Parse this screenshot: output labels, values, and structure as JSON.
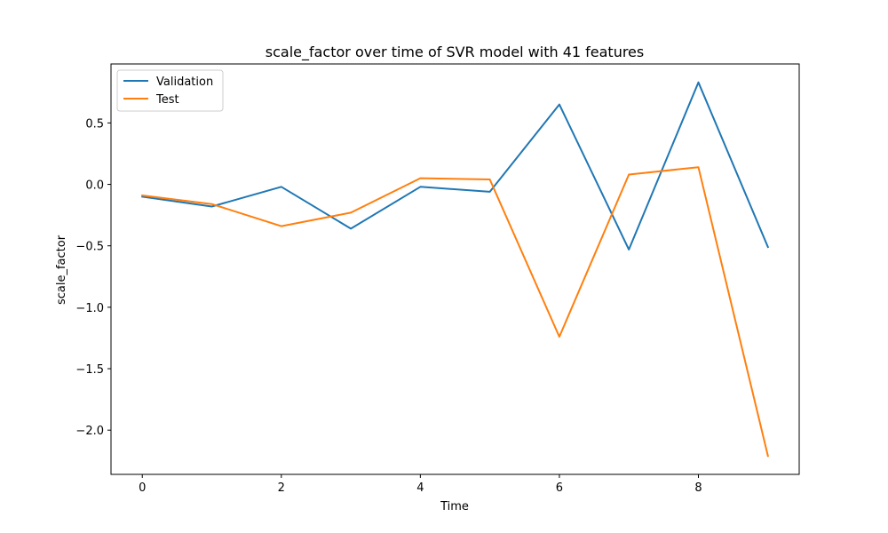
{
  "chart_data": {
    "type": "line",
    "title": "scale_factor over time of SVR model with 41 features",
    "xlabel": "Time",
    "ylabel": "scale_factor",
    "x": [
      0,
      1,
      2,
      3,
      4,
      5,
      6,
      7,
      8,
      9
    ],
    "xlim": [
      -0.45,
      9.45
    ],
    "ylim": [
      -2.36,
      0.98
    ],
    "xticks": [
      0,
      2,
      4,
      6,
      8
    ],
    "xtick_labels": [
      "0",
      "2",
      "4",
      "6",
      "8"
    ],
    "yticks": [
      -2.0,
      -1.5,
      -1.0,
      -0.5,
      0.0,
      0.5
    ],
    "ytick_labels": [
      "−2.0",
      "−1.5",
      "−1.0",
      "−0.5",
      "0.0",
      "0.5"
    ],
    "grid": false,
    "legend_position": "top-left",
    "series": [
      {
        "name": "Validation",
        "color": "#1f77b4",
        "values": [
          -0.1,
          -0.18,
          -0.02,
          -0.36,
          -0.02,
          -0.06,
          0.65,
          -0.53,
          0.83,
          -0.51
        ]
      },
      {
        "name": "Test",
        "color": "#ff7f0e",
        "values": [
          -0.09,
          -0.16,
          -0.34,
          -0.23,
          0.05,
          0.04,
          -1.24,
          0.08,
          0.14,
          -2.21
        ]
      }
    ]
  }
}
